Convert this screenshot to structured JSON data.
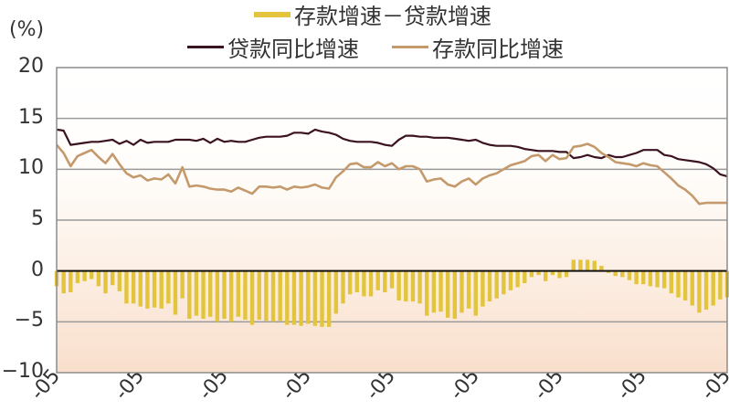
{
  "chart_data": {
    "type": "line+bar",
    "title": "",
    "ylabel": "(%)",
    "xlabel": "",
    "ylim": [
      -10,
      20
    ],
    "yticks": [
      20,
      15,
      10,
      5,
      0,
      -5,
      -10
    ],
    "grid": "horizontal",
    "legend_position": "top",
    "x_tick_labels": [
      "-05",
      "-05",
      "-05",
      "-05",
      "-05",
      "-05",
      "-05",
      "-05",
      "-05"
    ],
    "x_tick_index": [
      0,
      12,
      24,
      36,
      48,
      60,
      72,
      84,
      96
    ],
    "n_points": 97,
    "series": [
      {
        "name": "贷款同比增速",
        "kind": "line",
        "color": "#3b1220",
        "values": [
          13.9,
          13.8,
          12.4,
          12.5,
          12.6,
          12.7,
          12.7,
          12.8,
          12.9,
          12.5,
          12.8,
          12.4,
          12.9,
          12.6,
          12.7,
          12.7,
          12.7,
          12.9,
          12.9,
          12.9,
          12.8,
          13.0,
          12.6,
          13.0,
          12.7,
          12.8,
          12.7,
          12.7,
          12.9,
          13.1,
          13.2,
          13.2,
          13.2,
          13.3,
          13.6,
          13.6,
          13.5,
          13.9,
          13.7,
          13.6,
          13.4,
          13.0,
          12.8,
          12.7,
          12.7,
          12.7,
          12.6,
          12.4,
          12.3,
          12.9,
          13.3,
          13.3,
          13.2,
          13.2,
          13.1,
          13.1,
          13.1,
          13.0,
          12.9,
          12.8,
          12.9,
          12.6,
          12.4,
          12.3,
          12.3,
          12.3,
          12.2,
          12.0,
          11.9,
          11.8,
          11.8,
          11.8,
          11.7,
          11.7,
          11.1,
          11.2,
          11.4,
          11.2,
          11.1,
          11.4,
          11.2,
          11.2,
          11.4,
          11.6,
          11.9,
          11.9,
          11.9,
          11.4,
          11.3,
          11.0,
          10.9,
          10.8,
          10.7,
          10.5,
          10.1,
          9.5,
          9.3
        ]
      },
      {
        "name": "存款同比增速",
        "kind": "line",
        "color": "#c49a6c",
        "values": [
          12.4,
          11.6,
          10.3,
          11.3,
          11.6,
          11.9,
          11.2,
          10.6,
          11.5,
          10.5,
          9.6,
          9.2,
          9.4,
          8.9,
          9.1,
          9.0,
          9.5,
          8.6,
          10.2,
          8.3,
          8.4,
          8.3,
          8.1,
          8.0,
          8.0,
          7.8,
          8.2,
          7.9,
          7.6,
          8.3,
          8.3,
          8.2,
          8.3,
          8.0,
          8.3,
          8.2,
          8.3,
          8.5,
          8.2,
          8.1,
          9.2,
          9.8,
          10.5,
          10.6,
          10.2,
          10.2,
          10.7,
          10.3,
          10.6,
          10.0,
          10.3,
          10.3,
          10.0,
          8.8,
          9.0,
          9.1,
          8.5,
          8.3,
          8.8,
          9.1,
          8.5,
          9.1,
          9.4,
          9.6,
          10.0,
          10.4,
          10.6,
          10.8,
          11.3,
          11.4,
          10.8,
          11.4,
          11.0,
          11.1,
          12.2,
          12.3,
          12.5,
          12.2,
          11.6,
          11.2,
          10.7,
          10.6,
          10.5,
          10.3,
          10.6,
          10.4,
          10.3,
          9.7,
          9.1,
          8.4,
          8.0,
          7.4,
          6.6,
          6.7,
          6.7,
          6.7,
          6.7
        ]
      },
      {
        "name": "存款增速－贷款增速",
        "kind": "bar",
        "color": "#e2c53c",
        "values": [
          -1.5,
          -2.2,
          -2.1,
          -1.2,
          -1.0,
          -0.8,
          -1.5,
          -2.2,
          -1.4,
          -2.0,
          -3.2,
          -3.2,
          -3.5,
          -3.7,
          -3.6,
          -3.7,
          -3.2,
          -4.3,
          -2.7,
          -4.7,
          -4.4,
          -4.7,
          -4.5,
          -5.0,
          -4.7,
          -5.0,
          -4.5,
          -4.8,
          -5.3,
          -4.8,
          -4.9,
          -5.0,
          -4.9,
          -5.3,
          -5.3,
          -5.4,
          -5.2,
          -5.4,
          -5.5,
          -5.5,
          -4.2,
          -3.2,
          -2.3,
          -2.1,
          -2.5,
          -2.5,
          -1.9,
          -2.1,
          -1.7,
          -2.9,
          -3.0,
          -3.0,
          -3.2,
          -4.4,
          -4.1,
          -4.0,
          -4.6,
          -4.7,
          -4.1,
          -3.7,
          -4.4,
          -3.5,
          -3.0,
          -2.7,
          -2.3,
          -1.9,
          -1.6,
          -1.2,
          -0.6,
          -0.4,
          -1.0,
          -0.4,
          -0.7,
          -0.6,
          1.1,
          1.1,
          1.1,
          1.0,
          0.5,
          -0.2,
          -0.5,
          -0.6,
          -0.9,
          -1.3,
          -1.3,
          -1.5,
          -1.6,
          -1.7,
          -2.2,
          -2.6,
          -2.9,
          -3.4,
          -4.1,
          -3.8,
          -3.4,
          -2.8,
          -2.6
        ]
      }
    ]
  },
  "legend": {
    "top": {
      "label": "存款增速－贷款增速",
      "color": "#e2c53c"
    },
    "left": {
      "label": "贷款同比增速",
      "color": "#3b1220"
    },
    "right": {
      "label": "存款同比增速",
      "color": "#c49a6c"
    }
  },
  "axis": {
    "unit": "(%)",
    "y_labels": [
      "20",
      "15",
      "10",
      "5",
      "0",
      "−5",
      "−10"
    ]
  },
  "colors": {
    "frame": "#8c8c8c",
    "grid": "#9a9a9a",
    "zero_line": "#111111",
    "bg_top": "#ffffff",
    "bg_bottom": "#f9dfcc"
  }
}
